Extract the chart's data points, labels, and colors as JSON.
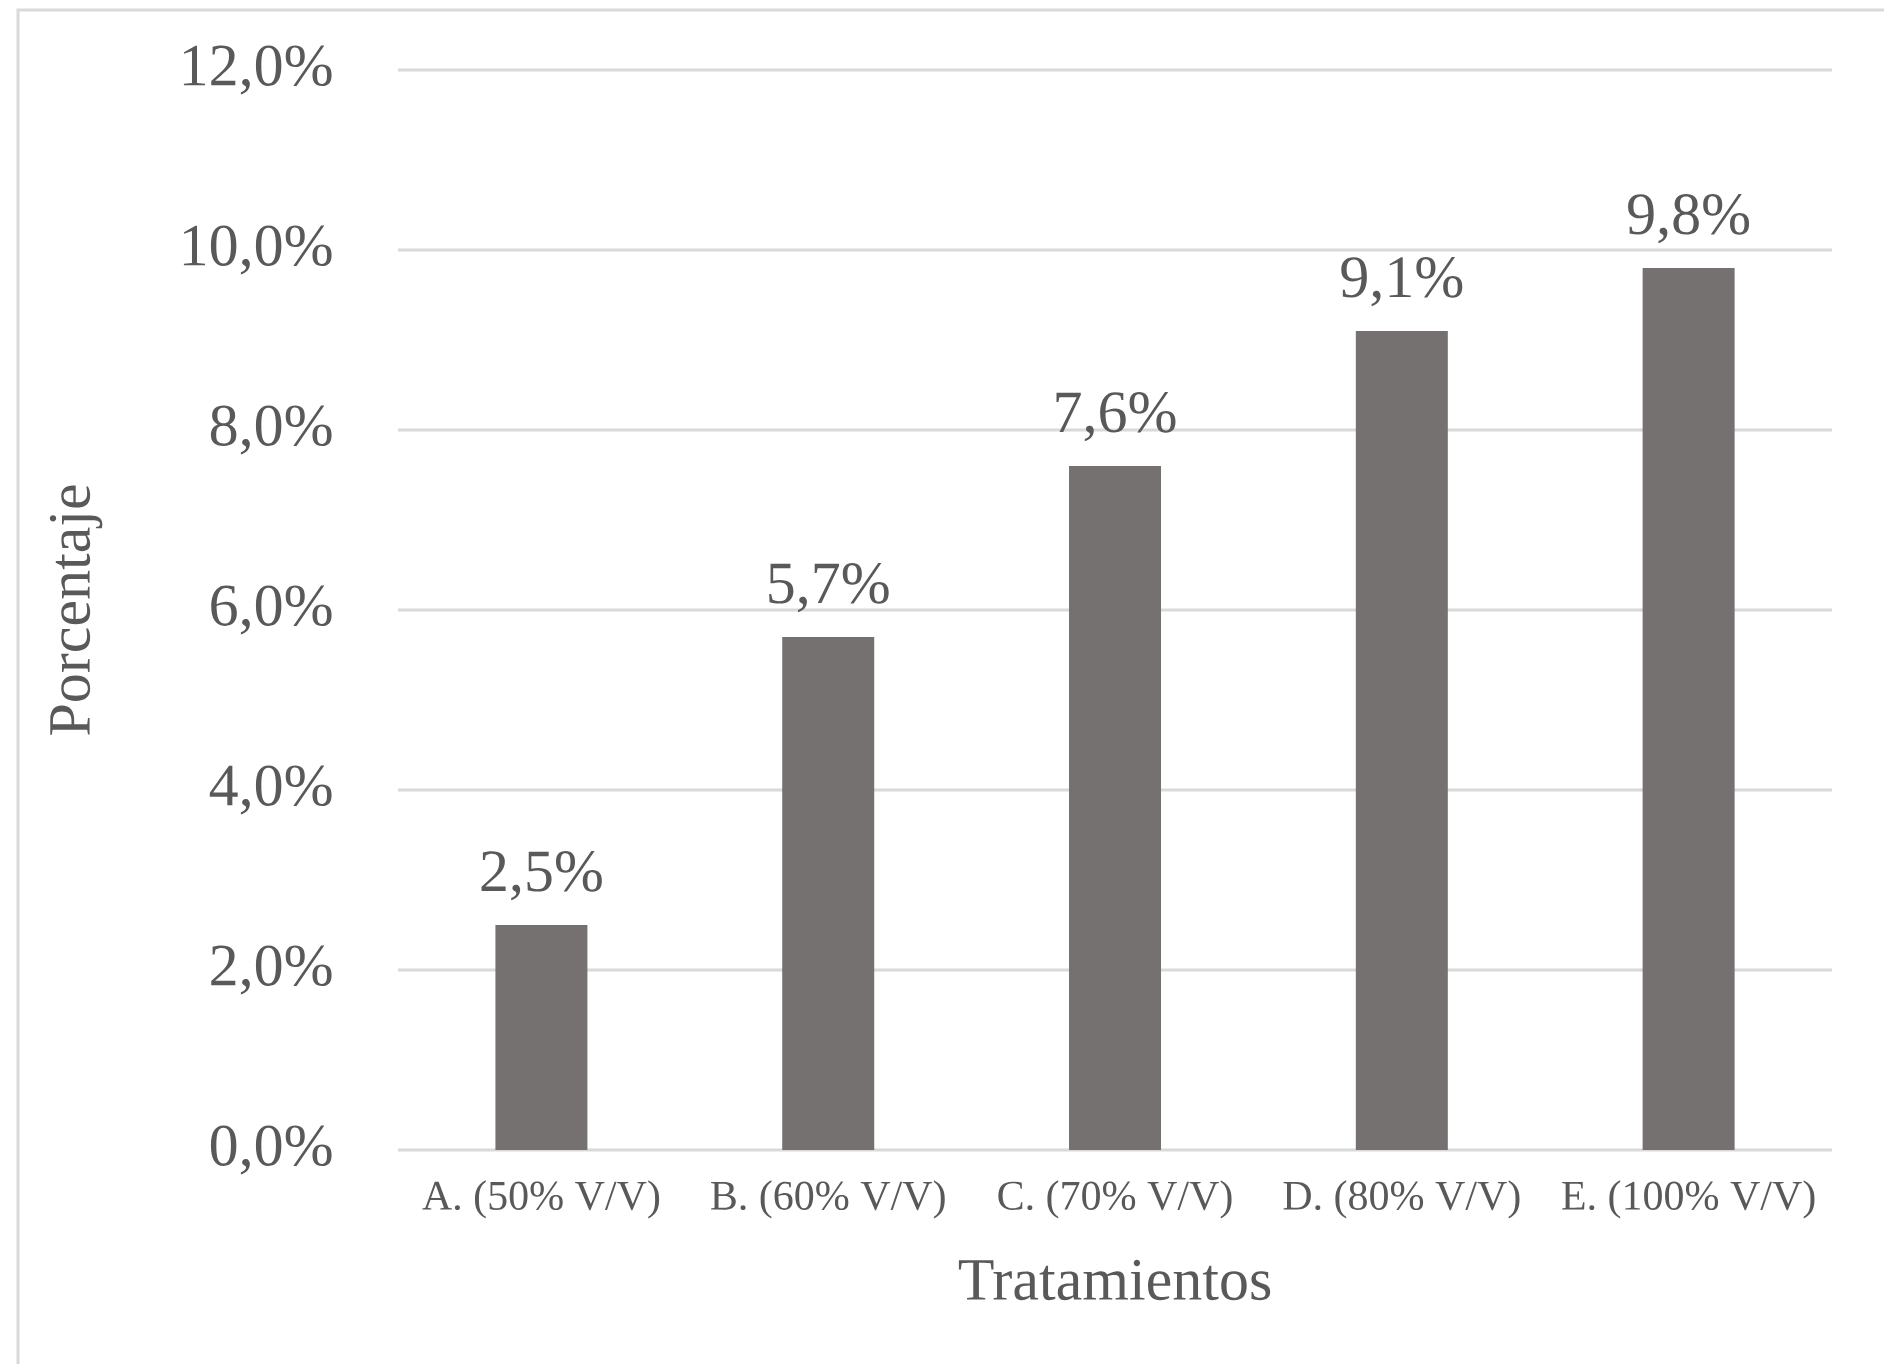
{
  "chart_data": {
    "type": "bar",
    "xlabel": "Tratamientos",
    "ylabel": "Porcentaje",
    "categories": [
      "A. (50% V/V)",
      "B. (60% V/V)",
      "C. (70% V/V)",
      "D. (80% V/V)",
      "E. (100% V/V)"
    ],
    "values": [
      2.5,
      5.7,
      7.6,
      9.1,
      9.8
    ],
    "value_labels": [
      "2,5%",
      "5,7%",
      "7,6%",
      "9,1%",
      "9,8%"
    ],
    "color": "#757171",
    "ylim": [
      0,
      12
    ],
    "yticks": [
      {
        "value": 0,
        "label": "0,0%"
      },
      {
        "value": 2,
        "label": "2,0%"
      },
      {
        "value": 4,
        "label": "4,0%"
      },
      {
        "value": 6,
        "label": "6,0%"
      },
      {
        "value": 8,
        "label": "8,0%"
      },
      {
        "value": 10,
        "label": "10,0%"
      },
      {
        "value": 12,
        "label": "12,0%"
      }
    ],
    "grid": "y"
  }
}
